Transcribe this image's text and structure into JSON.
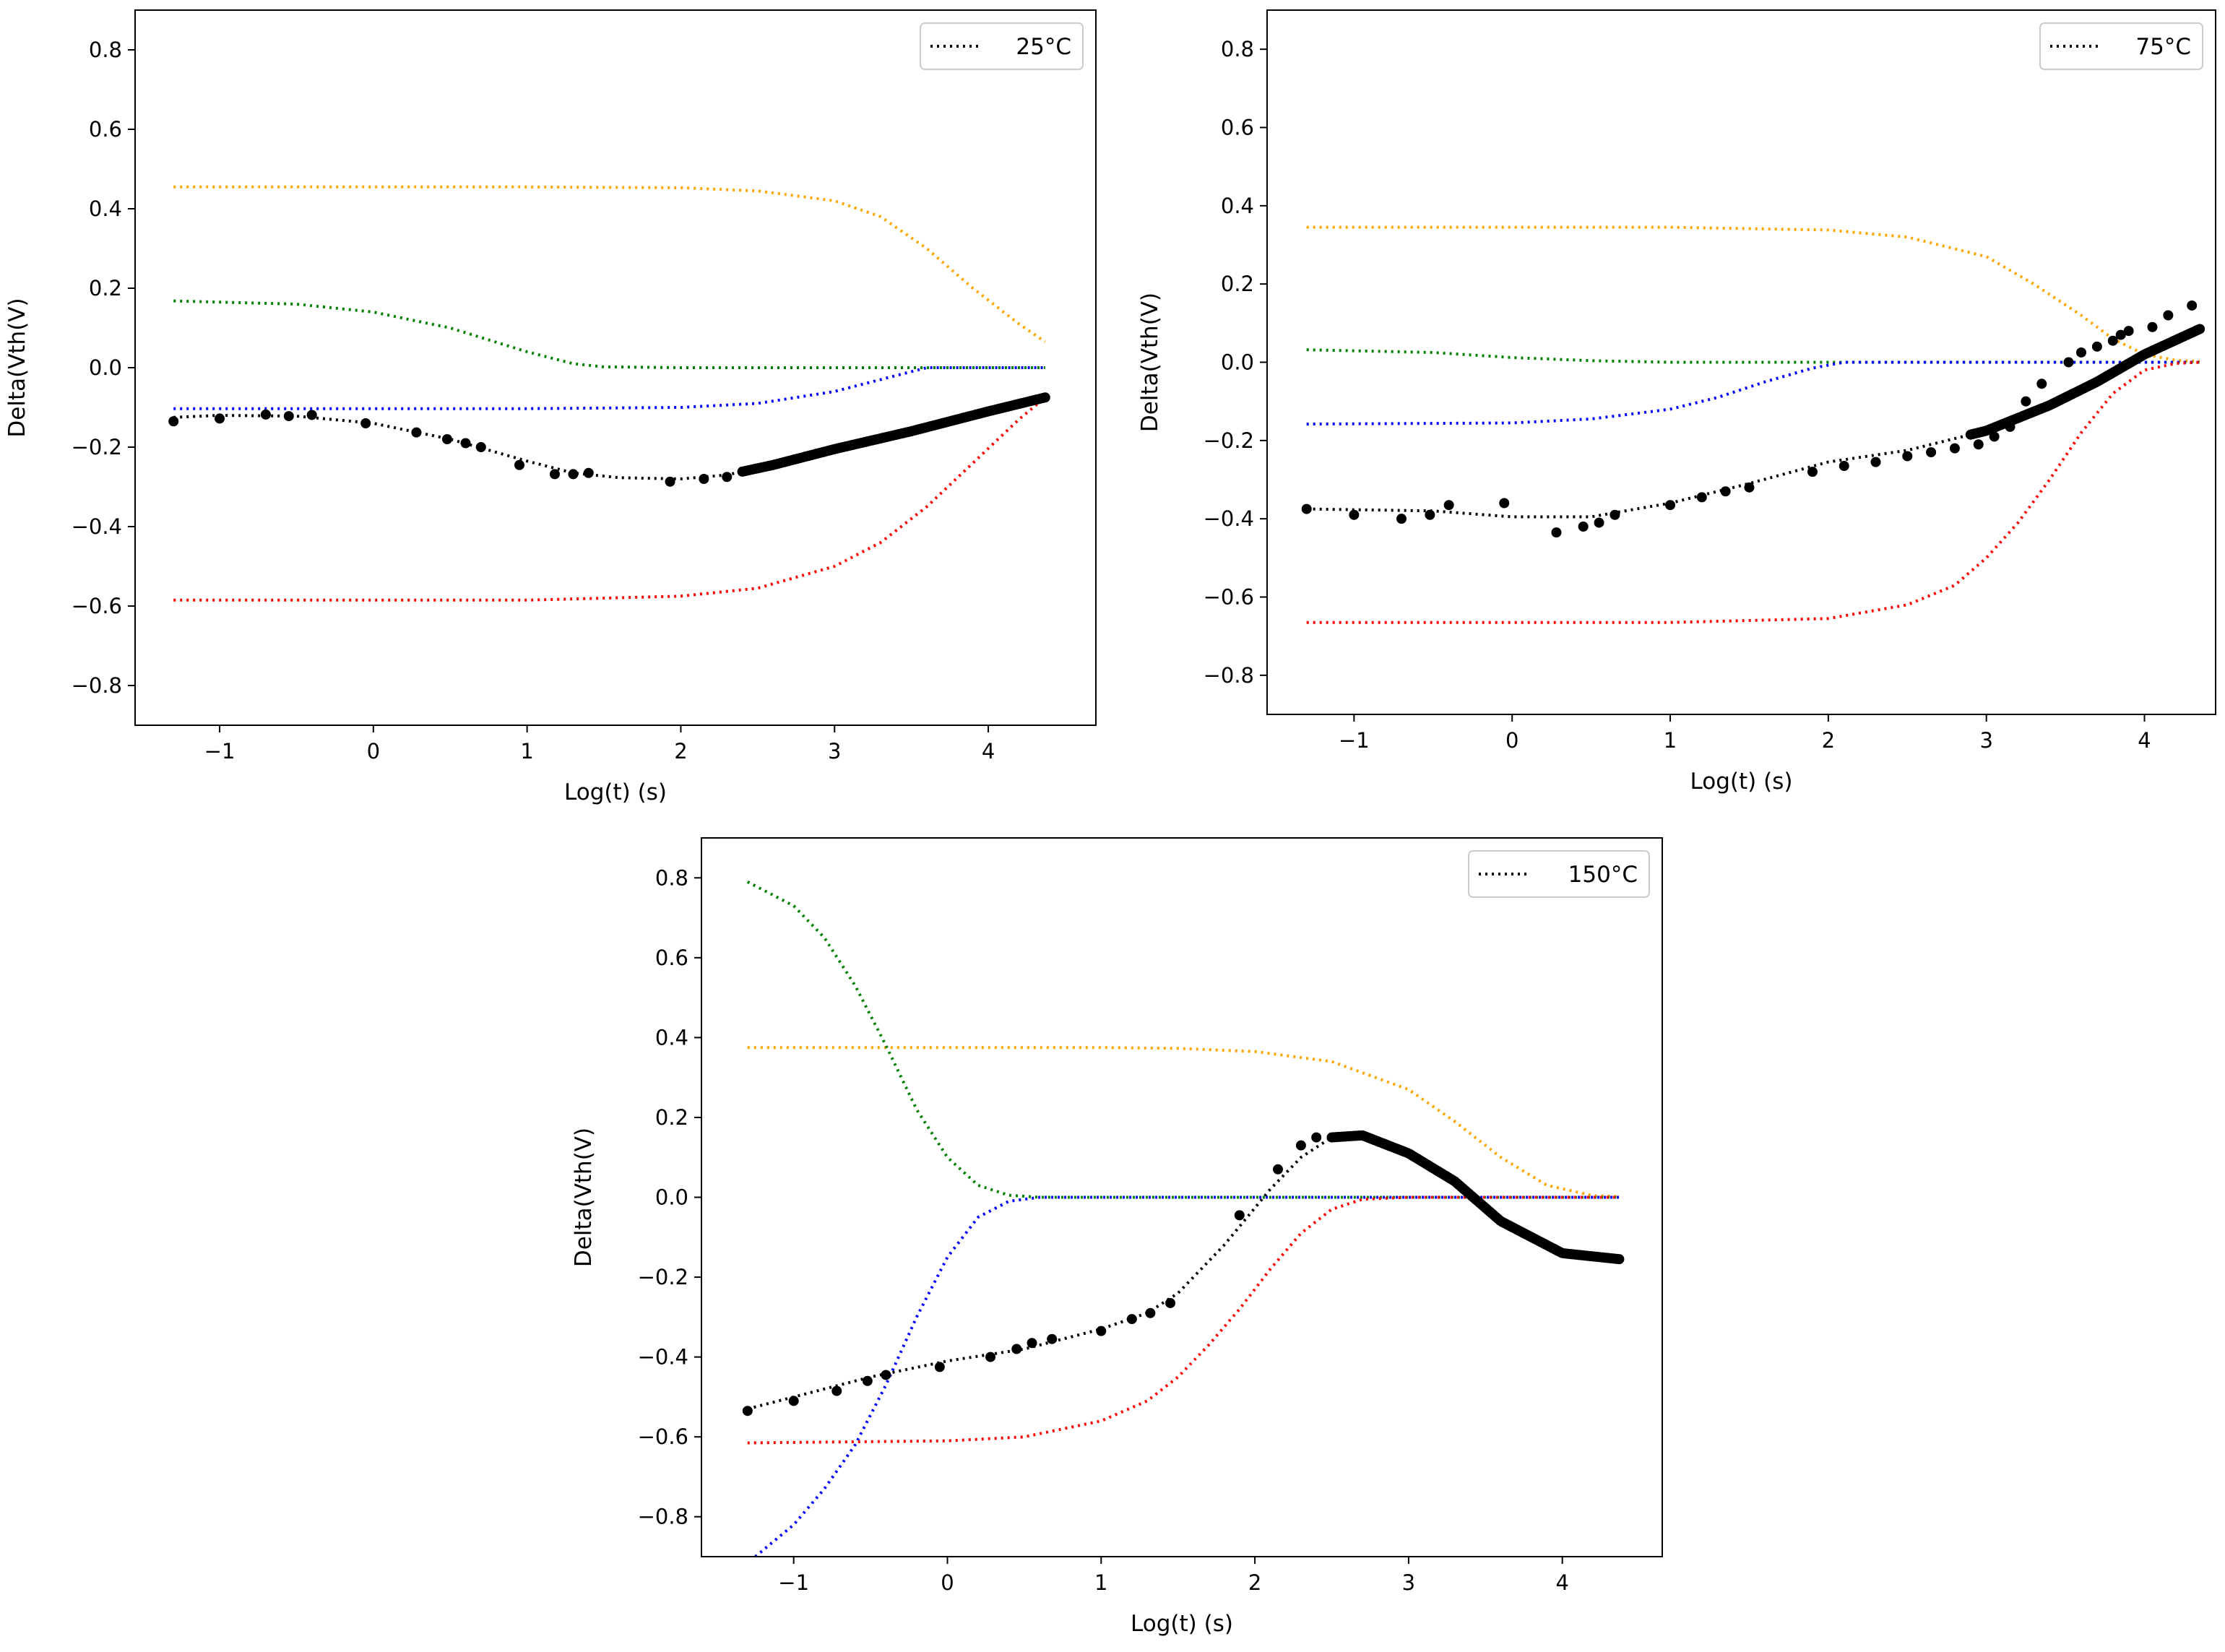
{
  "chart_data": [
    {
      "type": "line",
      "panel": "top-left",
      "xlabel": "Log(t) (s)",
      "ylabel": "Delta(Vth(V)",
      "xlim": [
        -1.55,
        4.7
      ],
      "ylim": [
        -0.9,
        0.9
      ],
      "xticks": [
        -1,
        0,
        1,
        2,
        3,
        4
      ],
      "yticks": [
        -0.8,
        -0.6,
        -0.4,
        -0.2,
        0.0,
        0.2,
        0.4,
        0.6,
        0.8
      ],
      "xtick_labels": [
        "−1",
        "0",
        "1",
        "2",
        "3",
        "4"
      ],
      "ytick_labels": [
        "−0.8",
        "−0.6",
        "−0.4",
        "−0.2",
        "0.0",
        "0.2",
        "0.4",
        "0.6",
        "0.8"
      ],
      "legend": {
        "label": "25°C",
        "position": "top-right"
      },
      "series": [
        {
          "name": "orange",
          "color": "#ffa500",
          "style": "dotted",
          "x": [
            -1.3,
            0,
            1,
            2,
            2.5,
            3,
            3.3,
            3.6,
            3.9,
            4.2,
            4.37
          ],
          "y": [
            0.455,
            0.455,
            0.455,
            0.453,
            0.445,
            0.42,
            0.38,
            0.3,
            0.2,
            0.11,
            0.065
          ]
        },
        {
          "name": "green",
          "color": "#008000",
          "style": "dotted",
          "x": [
            -1.3,
            -0.5,
            0,
            0.5,
            1,
            1.3,
            1.5,
            2,
            3,
            4,
            4.37
          ],
          "y": [
            0.168,
            0.16,
            0.14,
            0.1,
            0.04,
            0.01,
            0.002,
            0,
            0,
            0,
            0
          ]
        },
        {
          "name": "blue",
          "color": "#0000ff",
          "style": "dotted",
          "x": [
            -1.3,
            0,
            1,
            2,
            2.5,
            3,
            3.3,
            3.5,
            3.6,
            4,
            4.37
          ],
          "y": [
            -0.103,
            -0.103,
            -0.103,
            -0.1,
            -0.09,
            -0.06,
            -0.03,
            -0.01,
            0,
            0,
            0
          ]
        },
        {
          "name": "red",
          "color": "#ff0000",
          "style": "dotted",
          "x": [
            -1.3,
            0,
            1,
            2,
            2.5,
            3,
            3.3,
            3.6,
            3.9,
            4.2,
            4.37
          ],
          "y": [
            -0.585,
            -0.585,
            -0.585,
            -0.575,
            -0.555,
            -0.5,
            -0.44,
            -0.35,
            -0.24,
            -0.13,
            -0.075
          ]
        },
        {
          "name": "fit",
          "color": "#000000",
          "style": "dotted",
          "legend": true,
          "x": [
            -1.3,
            -1,
            -0.5,
            0,
            0.5,
            1,
            1.3,
            1.6,
            2,
            2.3,
            2.6,
            3,
            3.5,
            4,
            4.37
          ],
          "y": [
            -0.125,
            -0.12,
            -0.122,
            -0.14,
            -0.18,
            -0.235,
            -0.265,
            -0.277,
            -0.28,
            -0.27,
            -0.245,
            -0.205,
            -0.16,
            -0.11,
            -0.075
          ]
        },
        {
          "name": "data",
          "color": "#000000",
          "style": "markers",
          "x": [
            -1.3,
            -1.0,
            -0.7,
            -0.55,
            -0.4,
            -0.05,
            0.28,
            0.48,
            0.6,
            0.7,
            0.95,
            1.18,
            1.3,
            1.4,
            1.93,
            2.15,
            2.3
          ],
          "y": [
            -0.135,
            -0.128,
            -0.118,
            -0.122,
            -0.119,
            -0.14,
            -0.163,
            -0.18,
            -0.19,
            -0.2,
            -0.245,
            -0.268,
            -0.268,
            -0.265,
            -0.287,
            -0.28,
            -0.275
          ],
          "dense_x": [
            2.4,
            4.37
          ],
          "dense_y": [
            -0.268,
            -0.07
          ]
        }
      ]
    },
    {
      "type": "line",
      "panel": "top-right",
      "xlabel": "Log(t) (s)",
      "ylabel": "Delta(Vth(V)",
      "xlim": [
        -1.55,
        4.45
      ],
      "ylim": [
        -0.9,
        0.9
      ],
      "xticks": [
        -1,
        0,
        1,
        2,
        3,
        4
      ],
      "yticks": [
        -0.8,
        -0.6,
        -0.4,
        -0.2,
        0.0,
        0.2,
        0.4,
        0.6,
        0.8
      ],
      "xtick_labels": [
        "−1",
        "0",
        "1",
        "2",
        "3",
        "4"
      ],
      "ytick_labels": [
        "−0.8",
        "−0.6",
        "−0.4",
        "−0.2",
        "0.0",
        "0.2",
        "0.4",
        "0.6",
        "0.8"
      ],
      "legend": {
        "label": "75°C",
        "position": "top-right"
      },
      "series": [
        {
          "name": "orange",
          "color": "#ffa500",
          "style": "dotted",
          "x": [
            -1.3,
            0,
            1,
            2,
            2.5,
            3,
            3.3,
            3.6,
            3.8,
            4,
            4.2,
            4.35
          ],
          "y": [
            0.345,
            0.345,
            0.345,
            0.338,
            0.32,
            0.27,
            0.2,
            0.12,
            0.06,
            0.02,
            0.005,
            0.002
          ]
        },
        {
          "name": "green",
          "color": "#008000",
          "style": "dotted",
          "x": [
            -1.3,
            -0.5,
            0,
            0.5,
            1,
            1.5,
            2,
            3,
            4,
            4.35
          ],
          "y": [
            0.032,
            0.025,
            0.012,
            0.004,
            0,
            0,
            0,
            0,
            0,
            0
          ]
        },
        {
          "name": "blue",
          "color": "#0000ff",
          "style": "dotted",
          "x": [
            -1.3,
            0,
            0.5,
            1,
            1.3,
            1.6,
            1.9,
            2.1,
            2.2,
            3,
            4,
            4.35
          ],
          "y": [
            -0.158,
            -0.155,
            -0.145,
            -0.12,
            -0.09,
            -0.05,
            -0.015,
            0,
            0,
            0,
            0,
            0
          ]
        },
        {
          "name": "red",
          "color": "#ff0000",
          "style": "dotted",
          "x": [
            -1.3,
            0,
            1,
            2,
            2.5,
            2.8,
            3,
            3.2,
            3.4,
            3.6,
            3.8,
            4,
            4.2,
            4.35
          ],
          "y": [
            -0.665,
            -0.665,
            -0.665,
            -0.655,
            -0.62,
            -0.57,
            -0.5,
            -0.41,
            -0.3,
            -0.18,
            -0.08,
            -0.02,
            -0.003,
            0
          ]
        },
        {
          "name": "fit",
          "color": "#000000",
          "style": "dotted",
          "legend": true,
          "x": [
            -1.3,
            -0.5,
            0,
            0.5,
            1,
            1.5,
            2,
            2.5,
            3,
            3.4,
            3.7,
            4,
            4.35
          ],
          "y": [
            -0.375,
            -0.38,
            -0.395,
            -0.395,
            -0.36,
            -0.31,
            -0.255,
            -0.225,
            -0.175,
            -0.11,
            -0.05,
            0.02,
            0.085
          ]
        },
        {
          "name": "data",
          "color": "#000000",
          "style": "markers",
          "x": [
            -1.3,
            -1.0,
            -0.7,
            -0.52,
            -0.4,
            -0.05,
            0.28,
            0.45,
            0.55,
            0.65,
            1.0,
            1.2,
            1.35,
            1.5,
            1.9,
            2.1,
            2.3,
            2.5,
            2.65,
            2.8,
            2.95,
            3.05,
            3.15,
            3.25,
            3.35,
            3.52,
            3.6,
            3.7,
            3.8,
            3.85,
            3.9,
            4.05,
            4.15,
            4.3
          ],
          "y": [
            -0.375,
            -0.39,
            -0.4,
            -0.39,
            -0.365,
            -0.36,
            -0.435,
            -0.42,
            -0.41,
            -0.39,
            -0.365,
            -0.345,
            -0.33,
            -0.32,
            -0.28,
            -0.265,
            -0.255,
            -0.24,
            -0.23,
            -0.22,
            -0.21,
            -0.19,
            -0.165,
            -0.1,
            -0.055,
            0.0,
            0.025,
            0.04,
            0.055,
            0.07,
            0.08,
            0.09,
            0.12,
            0.145
          ],
          "dense_x": [
            2.9,
            4.35
          ],
          "dense_y": [
            -0.2,
            0.085
          ]
        }
      ]
    },
    {
      "type": "line",
      "panel": "bottom-center",
      "xlabel": "Log(t) (s)",
      "ylabel": "Delta(Vth(V)",
      "xlim": [
        -1.6,
        4.65
      ],
      "ylim": [
        -0.9,
        0.9
      ],
      "xticks": [
        -1,
        0,
        1,
        2,
        3,
        4
      ],
      "yticks": [
        -0.8,
        -0.6,
        -0.4,
        -0.2,
        0.0,
        0.2,
        0.4,
        0.6,
        0.8
      ],
      "xtick_labels": [
        "−1",
        "0",
        "1",
        "2",
        "3",
        "4"
      ],
      "ytick_labels": [
        "−0.8",
        "−0.6",
        "−0.4",
        "−0.2",
        "0.0",
        "0.2",
        "0.4",
        "0.6",
        "0.8"
      ],
      "legend": {
        "label": "150°C",
        "position": "top-right"
      },
      "series": [
        {
          "name": "orange",
          "color": "#ffa500",
          "style": "dotted",
          "x": [
            -1.3,
            0,
            1,
            1.5,
            2,
            2.5,
            3,
            3.3,
            3.6,
            3.9,
            4.2,
            4.37
          ],
          "y": [
            0.375,
            0.375,
            0.375,
            0.373,
            0.365,
            0.34,
            0.27,
            0.19,
            0.1,
            0.03,
            0.004,
            0.002
          ]
        },
        {
          "name": "green",
          "color": "#008000",
          "style": "dotted",
          "x": [
            -1.3,
            -1.0,
            -0.8,
            -0.6,
            -0.4,
            -0.2,
            0,
            0.2,
            0.4,
            0.6,
            1,
            2,
            3,
            4,
            4.37
          ],
          "y": [
            0.79,
            0.73,
            0.65,
            0.53,
            0.38,
            0.22,
            0.1,
            0.03,
            0.005,
            0,
            0,
            0,
            0,
            0,
            0
          ]
        },
        {
          "name": "blue",
          "color": "#0000ff",
          "style": "dotted",
          "x": [
            -1.25,
            -1.0,
            -0.8,
            -0.6,
            -0.4,
            -0.2,
            0,
            0.2,
            0.4,
            0.6,
            1,
            2,
            3,
            4,
            4.37
          ],
          "y": [
            -0.9,
            -0.82,
            -0.73,
            -0.62,
            -0.47,
            -0.3,
            -0.15,
            -0.05,
            -0.01,
            0,
            0,
            0,
            0,
            0,
            0
          ]
        },
        {
          "name": "red",
          "color": "#ff0000",
          "style": "dotted",
          "x": [
            -1.3,
            0,
            0.5,
            1,
            1.3,
            1.5,
            1.7,
            1.9,
            2.1,
            2.3,
            2.5,
            2.7,
            3,
            4,
            4.37
          ],
          "y": [
            -0.615,
            -0.61,
            -0.6,
            -0.56,
            -0.51,
            -0.45,
            -0.37,
            -0.28,
            -0.18,
            -0.09,
            -0.03,
            -0.005,
            0,
            0,
            0
          ]
        },
        {
          "name": "fit",
          "color": "#000000",
          "style": "dotted",
          "legend": true,
          "x": [
            -1.3,
            -0.5,
            0,
            0.5,
            1,
            1.3,
            1.5,
            1.8,
            2.1,
            2.3,
            2.5,
            2.7,
            3,
            3.3,
            3.6,
            4,
            4.37
          ],
          "y": [
            -0.53,
            -0.45,
            -0.41,
            -0.38,
            -0.33,
            -0.29,
            -0.24,
            -0.12,
            0.02,
            0.1,
            0.15,
            0.155,
            0.11,
            0.04,
            -0.06,
            -0.14,
            -0.155
          ]
        },
        {
          "name": "data",
          "color": "#000000",
          "style": "markers",
          "x": [
            -1.3,
            -1.0,
            -0.72,
            -0.52,
            -0.4,
            -0.05,
            0.28,
            0.45,
            0.55,
            0.68,
            1.0,
            1.2,
            1.32,
            1.45,
            1.9,
            2.15,
            2.3,
            2.4
          ],
          "y": [
            -0.535,
            -0.51,
            -0.485,
            -0.46,
            -0.445,
            -0.425,
            -0.4,
            -0.38,
            -0.365,
            -0.355,
            -0.335,
            -0.305,
            -0.29,
            -0.265,
            -0.045,
            0.07,
            0.13,
            0.15
          ],
          "dense_x": [
            2.5,
            4.37
          ],
          "dense_y_shape": "hump",
          "dense_y": [
            0.16,
            -0.155
          ]
        }
      ]
    }
  ]
}
